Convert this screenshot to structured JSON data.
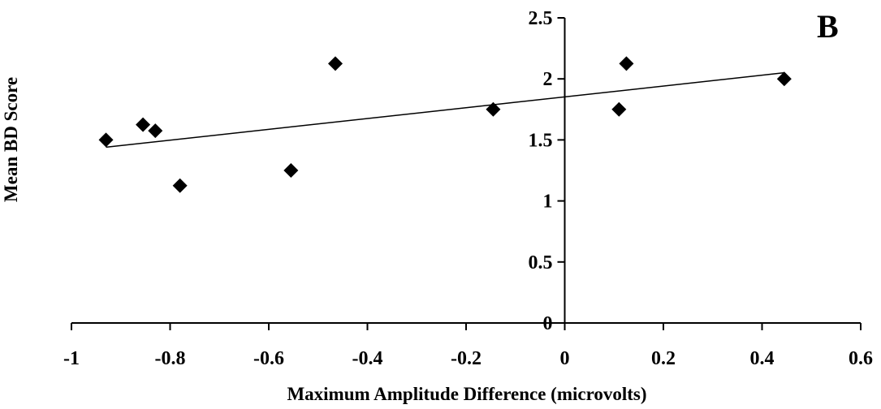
{
  "chart_data": {
    "type": "scatter",
    "panel_label": "B",
    "xlabel": "Maximum Amplitude Difference (microvolts)",
    "ylabel": "Mean BD Score",
    "xlim": [
      -1,
      0.6
    ],
    "ylim": [
      0,
      2.5
    ],
    "x_ticks": [
      -1,
      -0.8,
      -0.6,
      -0.4,
      -0.2,
      0,
      0.2,
      0.4,
      0.6
    ],
    "x_tick_labels": [
      "-1",
      "-0.8",
      "-0.6",
      "-0.4",
      "-0.2",
      "0",
      "0.2",
      "0.4",
      "0.6"
    ],
    "y_ticks": [
      0,
      0.5,
      1,
      1.5,
      2,
      2.5
    ],
    "y_tick_labels": [
      "0",
      "0.5",
      "1",
      "1.5",
      "2",
      "2.5"
    ],
    "grid": false,
    "legend": "none",
    "marker": "diamond",
    "marker_color": "#000000",
    "points": [
      {
        "x": -0.93,
        "y": 1.5
      },
      {
        "x": -0.855,
        "y": 1.625
      },
      {
        "x": -0.83,
        "y": 1.575
      },
      {
        "x": -0.78,
        "y": 1.125
      },
      {
        "x": -0.555,
        "y": 1.25
      },
      {
        "x": -0.465,
        "y": 2.125
      },
      {
        "x": -0.145,
        "y": 1.75
      },
      {
        "x": 0.11,
        "y": 1.75
      },
      {
        "x": 0.125,
        "y": 2.125
      },
      {
        "x": 0.445,
        "y": 2.0
      }
    ],
    "trendline": {
      "type": "linear",
      "from": {
        "x": -0.93,
        "y": 1.44
      },
      "to": {
        "x": 0.445,
        "y": 2.05
      }
    }
  }
}
